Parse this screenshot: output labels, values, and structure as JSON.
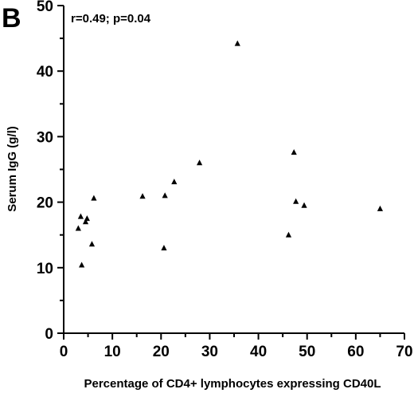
{
  "chart_data": {
    "type": "scatter",
    "panel_label": "B",
    "annotation": "r=0.49; p=0.04",
    "xlabel": "Percentage of CD4+ lymphocytes expressing CD40L",
    "ylabel": "Serum IgG (g/l)",
    "xlim": [
      0,
      70
    ],
    "ylim": [
      0,
      50
    ],
    "xticks": [
      0,
      10,
      20,
      30,
      40,
      50,
      60,
      70
    ],
    "yticks": [
      0,
      10,
      20,
      30,
      40,
      50
    ],
    "marker": "triangle",
    "grid": false,
    "series": [
      {
        "points": [
          {
            "x": 3.0,
            "y": 16.0
          },
          {
            "x": 3.5,
            "y": 17.8
          },
          {
            "x": 3.7,
            "y": 10.4
          },
          {
            "x": 4.5,
            "y": 17.0
          },
          {
            "x": 4.8,
            "y": 17.5
          },
          {
            "x": 5.8,
            "y": 13.6
          },
          {
            "x": 6.2,
            "y": 20.6
          },
          {
            "x": 16.2,
            "y": 20.9
          },
          {
            "x": 20.6,
            "y": 13.0
          },
          {
            "x": 20.8,
            "y": 21.0
          },
          {
            "x": 22.7,
            "y": 23.1
          },
          {
            "x": 27.9,
            "y": 26.0
          },
          {
            "x": 35.7,
            "y": 44.2
          },
          {
            "x": 46.2,
            "y": 15.0
          },
          {
            "x": 47.3,
            "y": 27.6
          },
          {
            "x": 47.7,
            "y": 20.1
          },
          {
            "x": 49.4,
            "y": 19.5
          },
          {
            "x": 65.0,
            "y": 19.0
          }
        ]
      }
    ]
  }
}
